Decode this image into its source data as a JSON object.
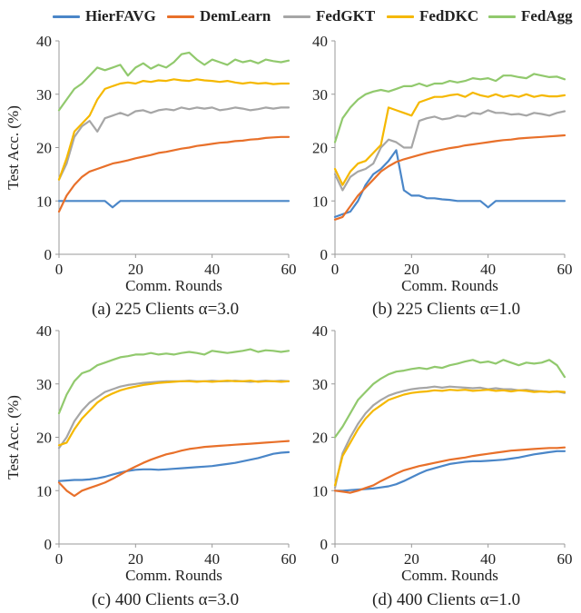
{
  "legend": [
    {
      "name": "HierFAVG",
      "color": "#4a86c8"
    },
    {
      "name": "DemLearn",
      "color": "#e8702a"
    },
    {
      "name": "FedGKT",
      "color": "#a6a6a6"
    },
    {
      "name": "FedDKC",
      "color": "#f5b800"
    },
    {
      "name": "FedAgg",
      "color": "#91c96d"
    }
  ],
  "captions": [
    "(a) 225 Clients α=3.0",
    "(b) 225 Clients α=1.0",
    "(c) 400 Clients α=3.0",
    "(d) 400 Clients α=1.0"
  ],
  "chart_data": [
    {
      "type": "line",
      "title": "(a) 225 Clients α=3.0",
      "xlabel": "Comm. Rounds",
      "ylabel": "Test Acc. (%)",
      "xlim": [
        0,
        60
      ],
      "ylim": [
        0,
        40
      ],
      "xticks": [
        0,
        20,
        40,
        60
      ],
      "yticks": [
        0,
        10,
        20,
        30,
        40
      ],
      "x": [
        0,
        2,
        4,
        6,
        8,
        10,
        12,
        14,
        16,
        18,
        20,
        22,
        24,
        26,
        28,
        30,
        32,
        34,
        36,
        38,
        40,
        42,
        44,
        46,
        48,
        50,
        52,
        54,
        56,
        58,
        60
      ],
      "series": [
        {
          "name": "HierFAVG",
          "values": [
            10,
            10,
            10,
            10,
            10,
            10,
            10,
            8.8,
            10,
            10,
            10,
            10,
            10,
            10,
            10,
            10,
            10,
            10,
            10,
            10,
            10,
            10,
            10,
            10,
            10,
            10,
            10,
            10,
            10,
            10,
            10
          ]
        },
        {
          "name": "DemLearn",
          "values": [
            8,
            11,
            13,
            14.5,
            15.5,
            16,
            16.5,
            17,
            17.3,
            17.6,
            18,
            18.3,
            18.6,
            19,
            19.2,
            19.5,
            19.8,
            20,
            20.3,
            20.5,
            20.7,
            20.9,
            21,
            21.2,
            21.3,
            21.5,
            21.6,
            21.8,
            21.9,
            22,
            22
          ]
        },
        {
          "name": "FedGKT",
          "values": [
            14,
            17,
            22,
            24,
            25,
            23,
            25.5,
            26,
            26.5,
            26,
            26.8,
            27,
            26.5,
            27,
            27.2,
            27,
            27.5,
            27.2,
            27.5,
            27.3,
            27.5,
            27,
            27.2,
            27.5,
            27.3,
            27,
            27.2,
            27.5,
            27.3,
            27.5,
            27.5
          ]
        },
        {
          "name": "FedDKC",
          "values": [
            14,
            18,
            23,
            24.5,
            26,
            29,
            31,
            31.5,
            32,
            32.2,
            32,
            32.5,
            32.3,
            32.6,
            32.5,
            32.8,
            32.6,
            32.5,
            32.8,
            32.6,
            32.5,
            32.3,
            32.5,
            32.2,
            32,
            32.2,
            32,
            32.1,
            31.9,
            32,
            32
          ]
        },
        {
          "name": "FedAgg",
          "values": [
            27,
            29,
            31,
            32,
            33.5,
            35,
            34.5,
            35,
            35.5,
            33.5,
            35,
            35.8,
            34.8,
            35.5,
            35,
            36,
            37.5,
            37.8,
            36.5,
            35.5,
            36.5,
            36,
            35.5,
            36.5,
            36,
            36.3,
            35.8,
            36.5,
            36.2,
            36,
            36.3
          ]
        }
      ]
    },
    {
      "type": "line",
      "title": "(b) 225 Clients α=1.0",
      "xlabel": "Comm. Rounds",
      "ylabel": "",
      "xlim": [
        0,
        60
      ],
      "ylim": [
        0,
        40
      ],
      "xticks": [
        0,
        20,
        40,
        60
      ],
      "yticks": [
        0,
        10,
        20,
        30,
        40
      ],
      "x": [
        0,
        2,
        4,
        6,
        8,
        10,
        12,
        14,
        16,
        18,
        20,
        22,
        24,
        26,
        28,
        30,
        32,
        34,
        36,
        38,
        40,
        42,
        44,
        46,
        48,
        50,
        52,
        54,
        56,
        58,
        60
      ],
      "series": [
        {
          "name": "HierFAVG",
          "values": [
            7,
            7.5,
            8,
            10,
            13,
            15,
            16,
            17.5,
            19.5,
            12,
            11,
            11,
            10.5,
            10.5,
            10.3,
            10.2,
            10,
            10,
            10,
            10,
            8.8,
            10,
            10,
            10,
            10,
            10,
            10,
            10,
            10,
            10,
            10
          ]
        },
        {
          "name": "DemLearn",
          "values": [
            6.5,
            7,
            9,
            11,
            12.5,
            14,
            15.5,
            16.5,
            17.3,
            17.8,
            18.2,
            18.6,
            19,
            19.3,
            19.6,
            19.9,
            20.1,
            20.4,
            20.6,
            20.8,
            21,
            21.2,
            21.4,
            21.5,
            21.7,
            21.8,
            21.9,
            22,
            22.1,
            22.2,
            22.3
          ]
        },
        {
          "name": "FedGKT",
          "values": [
            15,
            12,
            14.5,
            15.5,
            16,
            17,
            20,
            21.5,
            21,
            20,
            20,
            25,
            25.5,
            25.8,
            25.3,
            25.5,
            26,
            25.8,
            26.5,
            26.3,
            27,
            26.5,
            26.5,
            26.2,
            26.3,
            26,
            26.5,
            26.3,
            26,
            26.5,
            26.8
          ]
        },
        {
          "name": "FedDKC",
          "values": [
            16,
            13,
            15.5,
            17,
            17.5,
            19,
            20.5,
            27.5,
            27,
            26.5,
            26,
            28.5,
            29,
            29.5,
            29.5,
            29.8,
            30,
            29.5,
            30.3,
            29.8,
            29.5,
            30,
            29.5,
            29.8,
            29.5,
            30,
            29.5,
            29.8,
            29.6,
            29.6,
            29.8
          ]
        },
        {
          "name": "FedAgg",
          "values": [
            21,
            25.5,
            27.5,
            29,
            30,
            30.5,
            30.8,
            30.5,
            31,
            31.5,
            31.5,
            32,
            31.5,
            32,
            32,
            32.5,
            32.2,
            32.5,
            33,
            32.8,
            33,
            32.5,
            33.5,
            33.5,
            33.2,
            33,
            33.8,
            33.5,
            33.2,
            33.3,
            32.8
          ]
        }
      ]
    },
    {
      "type": "line",
      "title": "(c) 400 Clients α=3.0",
      "xlabel": "Comm. Rounds",
      "ylabel": "Test Acc. (%)",
      "xlim": [
        0,
        60
      ],
      "ylim": [
        0,
        40
      ],
      "xticks": [
        0,
        20,
        40,
        60
      ],
      "yticks": [
        0,
        10,
        20,
        30,
        40
      ],
      "x": [
        0,
        2,
        4,
        6,
        8,
        10,
        12,
        14,
        16,
        18,
        20,
        22,
        24,
        26,
        28,
        30,
        32,
        34,
        36,
        38,
        40,
        42,
        44,
        46,
        48,
        50,
        52,
        54,
        56,
        58,
        60
      ],
      "series": [
        {
          "name": "HierFAVG",
          "values": [
            11.8,
            11.9,
            12,
            12,
            12.1,
            12.3,
            12.6,
            13,
            13.4,
            13.7,
            13.9,
            14,
            14,
            13.9,
            14,
            14.1,
            14.2,
            14.3,
            14.4,
            14.5,
            14.6,
            14.8,
            15,
            15.2,
            15.5,
            15.8,
            16.1,
            16.5,
            16.9,
            17.1,
            17.2
          ]
        },
        {
          "name": "DemLearn",
          "values": [
            11.5,
            10,
            9,
            10,
            10.5,
            11,
            11.5,
            12.2,
            13,
            13.8,
            14.5,
            15.2,
            15.8,
            16.3,
            16.8,
            17.1,
            17.5,
            17.8,
            18,
            18.2,
            18.3,
            18.4,
            18.5,
            18.6,
            18.7,
            18.8,
            18.9,
            19,
            19.1,
            19.2,
            19.3
          ]
        },
        {
          "name": "FedGKT",
          "values": [
            18,
            20,
            23,
            25,
            26.5,
            27.5,
            28.5,
            29,
            29.5,
            29.8,
            30,
            30.2,
            30.3,
            30.4,
            30.5,
            30.5,
            30.5,
            30.6,
            30.5,
            30.5,
            30.6,
            30.5,
            30.5,
            30.6,
            30.5,
            30.4,
            30.5,
            30.6,
            30.5,
            30.6,
            30.5
          ]
        },
        {
          "name": "FedDKC",
          "values": [
            18.5,
            19,
            21.5,
            23.5,
            25,
            26.5,
            27.5,
            28.2,
            28.8,
            29.2,
            29.5,
            29.8,
            30,
            30.2,
            30.3,
            30.4,
            30.5,
            30.5,
            30.4,
            30.5,
            30.4,
            30.5,
            30.6,
            30.5,
            30.5,
            30.6,
            30.4,
            30.5,
            30.5,
            30.4,
            30.5
          ]
        },
        {
          "name": "FedAgg",
          "values": [
            24.5,
            28,
            30.5,
            32,
            32.5,
            33.5,
            34,
            34.5,
            35,
            35.2,
            35.5,
            35.5,
            35.8,
            35.5,
            35.7,
            35.5,
            35.8,
            36,
            35.8,
            35.5,
            36.2,
            36,
            35.8,
            36,
            36.2,
            36.5,
            36,
            36.3,
            36.2,
            36,
            36.2
          ]
        }
      ]
    },
    {
      "type": "line",
      "title": "(d) 400 Clients α=1.0",
      "xlabel": "Comm. Rounds",
      "ylabel": "",
      "xlim": [
        0,
        60
      ],
      "ylim": [
        0,
        40
      ],
      "xticks": [
        0,
        20,
        40,
        60
      ],
      "yticks": [
        0,
        10,
        20,
        30,
        40
      ],
      "x": [
        0,
        2,
        4,
        6,
        8,
        10,
        12,
        14,
        16,
        18,
        20,
        22,
        24,
        26,
        28,
        30,
        32,
        34,
        36,
        38,
        40,
        42,
        44,
        46,
        48,
        50,
        52,
        54,
        56,
        58,
        60
      ],
      "series": [
        {
          "name": "HierFAVG",
          "values": [
            10,
            10,
            10.1,
            10.2,
            10.3,
            10.4,
            10.6,
            10.8,
            11.2,
            11.8,
            12.5,
            13.2,
            13.8,
            14.2,
            14.6,
            15,
            15.2,
            15.4,
            15.5,
            15.5,
            15.6,
            15.7,
            15.8,
            16,
            16.2,
            16.5,
            16.8,
            17,
            17.2,
            17.4,
            17.4
          ]
        },
        {
          "name": "DemLearn",
          "values": [
            10,
            9.8,
            9.6,
            10,
            10.5,
            11,
            11.8,
            12.5,
            13.2,
            13.8,
            14.2,
            14.6,
            14.9,
            15.2,
            15.5,
            15.8,
            16,
            16.2,
            16.5,
            16.7,
            16.9,
            17.1,
            17.3,
            17.5,
            17.6,
            17.7,
            17.8,
            17.9,
            18,
            18,
            18.1
          ]
        },
        {
          "name": "FedGKT",
          "values": [
            10.5,
            17,
            20,
            22.5,
            24.5,
            26,
            27,
            27.8,
            28.3,
            28.7,
            29,
            29.2,
            29.3,
            29.5,
            29.3,
            29.5,
            29.4,
            29.3,
            29.2,
            29.3,
            29,
            29.2,
            29,
            29,
            28.8,
            28.9,
            28.7,
            28.6,
            28.5,
            28.6,
            28.3
          ]
        },
        {
          "name": "FedDKC",
          "values": [
            11,
            16.5,
            19,
            21.5,
            23.5,
            25,
            26,
            27,
            27.5,
            28,
            28.3,
            28.5,
            28.6,
            28.8,
            28.7,
            28.9,
            28.8,
            28.9,
            28.7,
            28.8,
            28.9,
            28.7,
            28.8,
            28.6,
            28.8,
            28.7,
            28.5,
            28.6,
            28.5,
            28.6,
            28.5
          ]
        },
        {
          "name": "FedAgg",
          "values": [
            20,
            22,
            24.5,
            27,
            28.5,
            30,
            31,
            31.8,
            32.3,
            32.5,
            32.8,
            33,
            32.8,
            33.2,
            33,
            33.5,
            33.8,
            34.2,
            34.5,
            34,
            34.2,
            33.8,
            34.5,
            34,
            33.5,
            34,
            33.8,
            34,
            34.5,
            33.5,
            31.3
          ]
        }
      ]
    }
  ]
}
